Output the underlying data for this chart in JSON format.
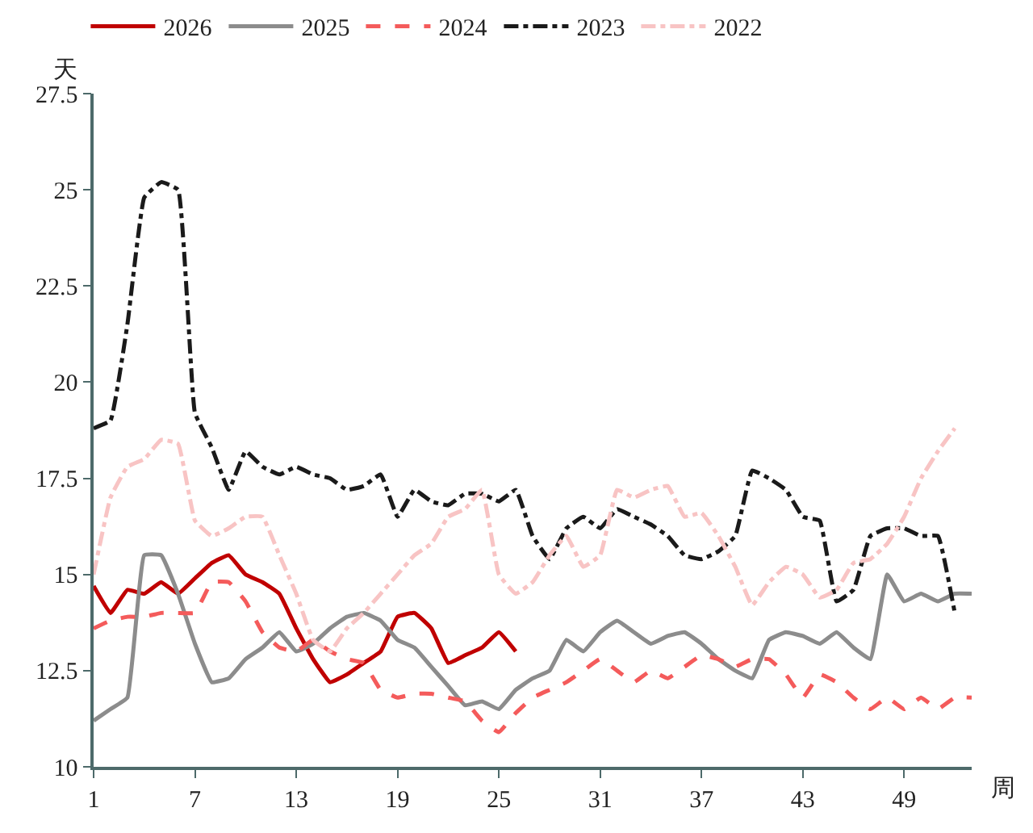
{
  "chart_data": {
    "type": "line",
    "xlabel": "周",
    "ylabel": "天",
    "x": [
      1,
      2,
      3,
      4,
      5,
      6,
      7,
      8,
      9,
      10,
      11,
      12,
      13,
      14,
      15,
      16,
      17,
      18,
      19,
      20,
      21,
      22,
      23,
      24,
      25,
      26,
      27,
      28,
      29,
      30,
      31,
      32,
      33,
      34,
      35,
      36,
      37,
      38,
      39,
      40,
      41,
      42,
      43,
      44,
      45,
      46,
      47,
      48,
      49,
      50,
      51,
      52,
      53
    ],
    "series": [
      {
        "name": "2026",
        "color": "#c00000",
        "line_style": "solid",
        "x": [
          1,
          2,
          3,
          4,
          5,
          6,
          7,
          8,
          9,
          10,
          11,
          12,
          13,
          14,
          15,
          16,
          17,
          18,
          19,
          20,
          21,
          22,
          23,
          24,
          25,
          26
        ],
        "values": [
          14.7,
          14.0,
          14.6,
          14.5,
          14.8,
          14.5,
          14.9,
          15.3,
          15.5,
          15.0,
          14.8,
          14.5,
          13.6,
          12.8,
          12.2,
          12.4,
          12.7,
          13.0,
          13.9,
          14.0,
          13.6,
          12.7,
          12.9,
          13.1,
          13.5,
          13.0
        ]
      },
      {
        "name": "2025",
        "color": "#8c8c8c",
        "line_style": "solid",
        "values": [
          11.2,
          11.5,
          11.8,
          15.5,
          15.5,
          14.5,
          13.2,
          12.2,
          12.3,
          12.8,
          13.1,
          13.5,
          13.0,
          13.2,
          13.6,
          13.9,
          14.0,
          13.8,
          13.3,
          13.1,
          12.6,
          12.1,
          11.6,
          11.7,
          11.5,
          12.0,
          12.3,
          12.5,
          13.3,
          13.0,
          13.5,
          13.8,
          13.5,
          13.2,
          13.4,
          13.5,
          13.2,
          12.8,
          12.5,
          12.3,
          13.3,
          13.5,
          13.4,
          13.2,
          13.5,
          13.1,
          12.8,
          15.0,
          14.3,
          14.5,
          14.3,
          14.5,
          14.5
        ]
      },
      {
        "name": "2024",
        "color": "#f45b5b",
        "line_style": "dashed",
        "values": [
          13.6,
          13.8,
          13.9,
          13.9,
          14.0,
          14.0,
          14.0,
          14.8,
          14.8,
          14.3,
          13.5,
          13.1,
          13.0,
          13.3,
          13.0,
          12.8,
          12.7,
          12.0,
          11.8,
          11.9,
          11.9,
          11.8,
          11.7,
          11.2,
          10.9,
          11.4,
          11.8,
          12.0,
          12.2,
          12.5,
          12.8,
          12.5,
          12.2,
          12.5,
          12.3,
          12.6,
          12.9,
          12.8,
          12.6,
          12.8,
          12.8,
          12.4,
          11.8,
          12.4,
          12.2,
          11.8,
          11.5,
          11.8,
          11.5,
          11.8,
          11.5,
          11.8,
          11.8
        ]
      },
      {
        "name": "2023",
        "color": "#1a1a1a",
        "line_style": "dashdot",
        "x": [
          1,
          2,
          3,
          4,
          5,
          6,
          7,
          8,
          9,
          10,
          11,
          12,
          13,
          14,
          15,
          16,
          17,
          18,
          19,
          20,
          21,
          22,
          23,
          24,
          25,
          26,
          27,
          28,
          29,
          30,
          31,
          32,
          33,
          34,
          35,
          36,
          37,
          38,
          39,
          40,
          41,
          42,
          43,
          44,
          45,
          46,
          47,
          48,
          49,
          50,
          51,
          52
        ],
        "values": [
          18.8,
          19.0,
          21.5,
          24.8,
          25.2,
          25.0,
          19.2,
          18.3,
          17.2,
          18.2,
          17.8,
          17.6,
          17.8,
          17.6,
          17.5,
          17.2,
          17.3,
          17.6,
          16.5,
          17.2,
          16.9,
          16.8,
          17.1,
          17.1,
          16.9,
          17.2,
          16.0,
          15.4,
          16.2,
          16.5,
          16.2,
          16.7,
          16.5,
          16.3,
          16.0,
          15.5,
          15.4,
          15.6,
          16.0,
          17.7,
          17.5,
          17.2,
          16.5,
          16.4,
          14.3,
          14.6,
          16.0,
          16.2,
          16.2,
          16.0,
          16.0,
          14.0
        ]
      },
      {
        "name": "2022",
        "color": "#f8c4c4",
        "line_style": "dashdot",
        "x": [
          1,
          2,
          3,
          4,
          5,
          6,
          7,
          8,
          9,
          10,
          11,
          12,
          13,
          14,
          15,
          16,
          17,
          18,
          19,
          20,
          21,
          22,
          23,
          24,
          25,
          26,
          27,
          28,
          29,
          30,
          31,
          32,
          33,
          34,
          35,
          36,
          37,
          38,
          39,
          40,
          41,
          42,
          43,
          44,
          45,
          46,
          47,
          48,
          49,
          50,
          51,
          52
        ],
        "values": [
          15.0,
          17.0,
          17.8,
          18.0,
          18.5,
          18.4,
          16.4,
          16.0,
          16.2,
          16.5,
          16.5,
          15.5,
          14.5,
          13.3,
          13.0,
          13.6,
          14.0,
          14.5,
          15.0,
          15.5,
          15.8,
          16.5,
          16.7,
          17.2,
          15.0,
          14.5,
          14.8,
          15.5,
          16.0,
          15.2,
          15.5,
          17.2,
          17.0,
          17.2,
          17.3,
          16.5,
          16.6,
          16.0,
          15.2,
          14.2,
          14.8,
          15.2,
          15.0,
          14.4,
          14.6,
          15.3,
          15.4,
          15.8,
          16.5,
          17.5,
          18.2,
          18.8
        ]
      }
    ],
    "xlim": [
      1,
      53
    ],
    "xticks": [
      1,
      7,
      13,
      19,
      25,
      31,
      37,
      43,
      49
    ],
    "ylim": [
      10,
      27.5
    ],
    "yticks": [
      10,
      12.5,
      15,
      17.5,
      20,
      22.5,
      25,
      27.5
    ],
    "legend": "top",
    "marker": "none"
  }
}
